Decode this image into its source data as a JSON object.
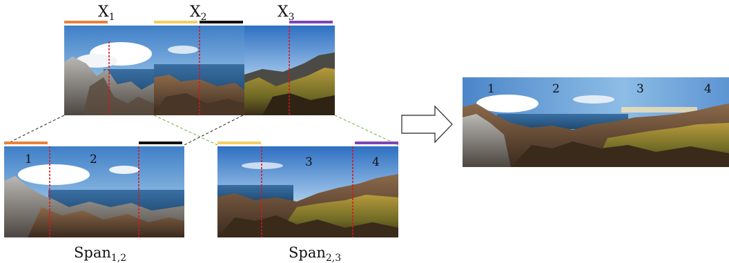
{
  "top_labels": [
    {
      "main": "X",
      "sub": "1"
    },
    {
      "main": "X",
      "sub": "2"
    },
    {
      "main": "X",
      "sub": "3"
    }
  ],
  "span_labels": [
    {
      "main": "Span",
      "sub": "1,2"
    },
    {
      "main": "Span",
      "sub": "2,3"
    }
  ],
  "span_left_numbers": [
    "1",
    "2"
  ],
  "span_right_numbers": [
    "3",
    "4"
  ],
  "panorama_numbers": [
    "1",
    "2",
    "3",
    "4"
  ],
  "colors": {
    "orange": "#e8823a",
    "yellow": "#f2cf63",
    "black": "#111111",
    "purple": "#7c45b5",
    "seam_red": "#d9141e",
    "dash_black": "#222222",
    "dash_green": "#6fae3c"
  },
  "icons": {
    "arrow": "right-arrow-icon"
  }
}
